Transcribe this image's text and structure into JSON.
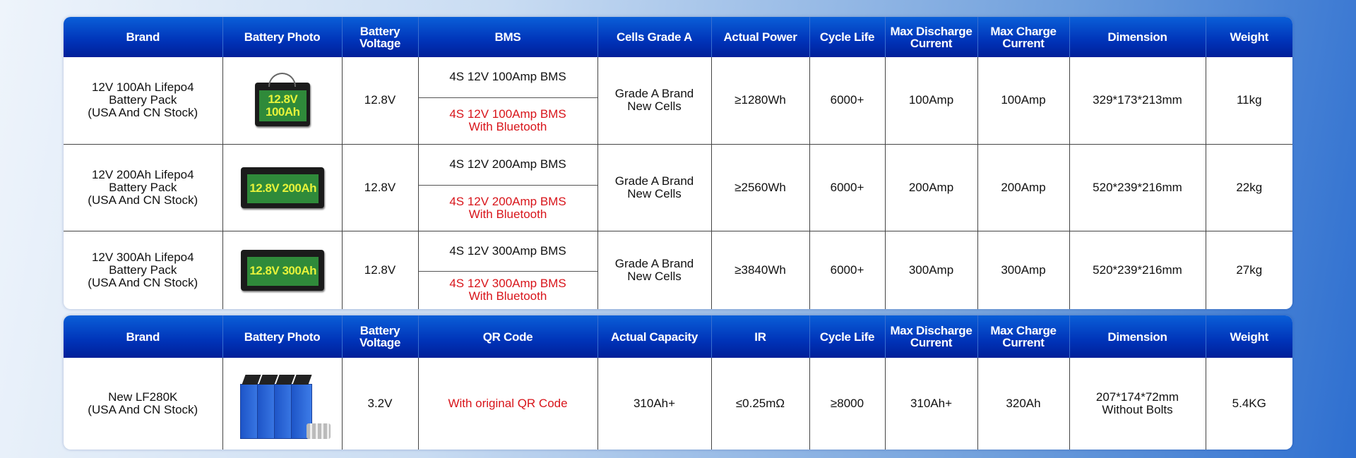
{
  "table1": {
    "headers": [
      "Brand",
      "Battery Photo",
      "Battery Voltage",
      "BMS",
      "Cells Grade A",
      "Actual Power",
      "Cycle Life",
      "Max Discharge Current",
      "Max Charge Current",
      "Dimension",
      "Weight"
    ],
    "rows": [
      {
        "brand": [
          "12V 100Ah Lifepo4",
          "Battery Pack",
          "(USA And CN Stock)"
        ],
        "photo_label": "12.8V 100Ah",
        "voltage": "12.8V",
        "bms": "4S 12V 100Amp BMS",
        "bms_bt": [
          "4S 12V 100Amp BMS",
          "With Bluetooth"
        ],
        "cells": [
          "Grade A Brand",
          "New Cells"
        ],
        "power": "≥1280Wh",
        "cycle": "6000+",
        "discharge": "100Amp",
        "charge": "100Amp",
        "dimension": "329*173*213mm",
        "weight": "11kg"
      },
      {
        "brand": [
          "12V 200Ah Lifepo4",
          "Battery Pack",
          "(USA And CN Stock)"
        ],
        "photo_label": "12.8V 200Ah",
        "voltage": "12.8V",
        "bms": "4S 12V 200Amp BMS",
        "bms_bt": [
          "4S 12V 200Amp BMS",
          "With Bluetooth"
        ],
        "cells": [
          "Grade A Brand",
          "New Cells"
        ],
        "power": "≥2560Wh",
        "cycle": "6000+",
        "discharge": "200Amp",
        "charge": "200Amp",
        "dimension": "520*239*216mm",
        "weight": "22kg"
      },
      {
        "brand": [
          "12V 300Ah Lifepo4",
          "Battery Pack",
          "(USA And CN Stock)"
        ],
        "photo_label": "12.8V 300Ah",
        "voltage": "12.8V",
        "bms": "4S 12V 300Amp BMS",
        "bms_bt": [
          "4S 12V 300Amp BMS",
          "With Bluetooth"
        ],
        "cells": [
          "Grade A Brand",
          "New Cells"
        ],
        "power": "≥3840Wh",
        "cycle": "6000+",
        "discharge": "300Amp",
        "charge": "300Amp",
        "dimension": "520*239*216mm",
        "weight": "27kg"
      }
    ]
  },
  "table2": {
    "headers": [
      "Brand",
      "Battery Photo",
      "Battery Voltage",
      "QR Code",
      "Actual Capacity",
      "IR",
      "Cycle Life",
      "Max Discharge Current",
      "Max Charge Current",
      "Dimension",
      "Weight"
    ],
    "row": {
      "brand": [
        "New LF280K",
        "(USA And CN Stock)"
      ],
      "voltage": "3.2V",
      "qr": "With original QR Code",
      "capacity": "310Ah+",
      "ir": "≤0.25mΩ",
      "cycle": "≥8000",
      "discharge": "310Ah+",
      "charge": "320Ah",
      "dimension": [
        "207*174*72mm",
        "Without Bolts"
      ],
      "weight": "5.4KG"
    }
  },
  "colors": {
    "header_blue": "#0033b8",
    "highlight_red": "#d8141a",
    "label_green": "#2f8a3a"
  }
}
